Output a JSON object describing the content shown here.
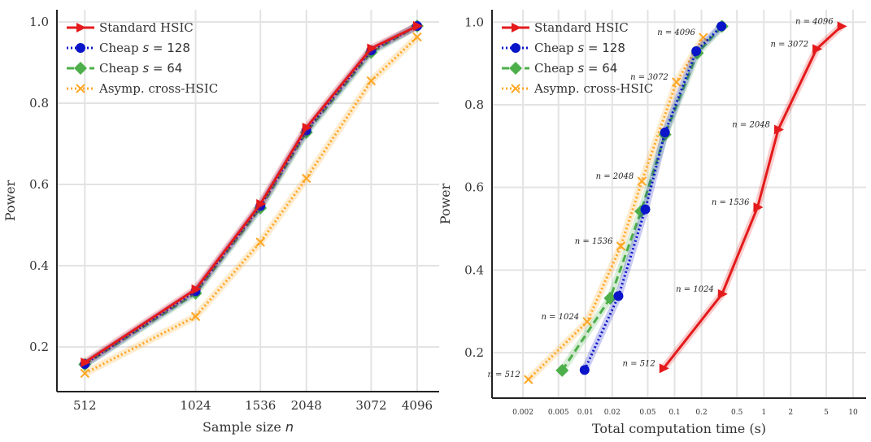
{
  "chart_data": [
    {
      "type": "line",
      "xlabel": "Sample size n",
      "ylabel": "Power",
      "x_scale": "log",
      "xlim": [
        430,
        4700
      ],
      "ylim": [
        0.09,
        1.03
      ],
      "xticks": [
        512,
        1024,
        1536,
        2048,
        3072,
        4096
      ],
      "xtick_labels": [
        "512",
        "1024",
        "1536",
        "2048",
        "3072",
        "4096"
      ],
      "yticks": [
        0.2,
        0.4,
        0.6,
        0.8,
        1.0
      ],
      "ytick_labels": [
        "0.2",
        "0.4",
        "0.6",
        "0.8",
        "1.0"
      ],
      "grid": true,
      "legend_position": "top-left",
      "series": [
        {
          "name": "Standard HSIC",
          "color": "#e41a1c",
          "marker": "triangle-right",
          "linestyle": "solid",
          "x": [
            512,
            1024,
            1536,
            2048,
            3072,
            4096
          ],
          "y": [
            0.162,
            0.342,
            0.552,
            0.74,
            0.935,
            0.99
          ]
        },
        {
          "name": "Cheap s = 128",
          "color": "#0a14c8",
          "marker": "circle",
          "linestyle": "dotted",
          "x": [
            512,
            1024,
            1536,
            2048,
            3072,
            4096
          ],
          "y": [
            0.158,
            0.337,
            0.547,
            0.733,
            0.93,
            0.99
          ]
        },
        {
          "name": "Cheap s = 64",
          "color": "#4daf4a",
          "marker": "diamond",
          "linestyle": "dashed",
          "x": [
            512,
            1024,
            1536,
            2048,
            3072,
            4096
          ],
          "y": [
            0.157,
            0.332,
            0.542,
            0.728,
            0.925,
            0.99
          ]
        },
        {
          "name": "Asymp. cross-HSIC",
          "color": "#ffa726",
          "marker": "x",
          "linestyle": "dotted",
          "x": [
            512,
            1024,
            1536,
            2048,
            3072,
            4096
          ],
          "y": [
            0.135,
            0.275,
            0.458,
            0.615,
            0.855,
            0.963
          ]
        }
      ]
    },
    {
      "type": "line",
      "xlabel": "Total computation time (s)",
      "ylabel": "Power",
      "x_scale": "log",
      "xlim": [
        0.0009,
        14
      ],
      "ylim": [
        0.09,
        1.03
      ],
      "xticks": [
        0.002,
        0.005,
        0.01,
        0.02,
        0.05,
        0.1,
        0.2,
        0.5,
        1,
        2,
        5,
        10
      ],
      "xtick_labels": [
        "0.002",
        "0.005",
        "0.01",
        "0.02",
        "0.05",
        "0.1",
        "0.2",
        "0.5",
        "1",
        "2",
        "5",
        "10"
      ],
      "yticks": [
        0.2,
        0.4,
        0.6,
        0.8,
        1.0
      ],
      "ytick_labels": [
        "0.2",
        "0.4",
        "0.6",
        "0.8",
        "1.0"
      ],
      "grid": true,
      "legend_position": "top-left",
      "series": [
        {
          "name": "Standard HSIC",
          "color": "#e41a1c",
          "marker": "triangle-right",
          "linestyle": "solid",
          "x": [
            0.075,
            0.34,
            0.85,
            1.45,
            3.9,
            7.4
          ],
          "y": [
            0.162,
            0.342,
            0.552,
            0.74,
            0.935,
            0.99
          ]
        },
        {
          "name": "Cheap s = 128",
          "color": "#0a14c8",
          "marker": "circle",
          "linestyle": "dotted",
          "x": [
            0.0098,
            0.0235,
            0.047,
            0.078,
            0.175,
            0.335
          ],
          "y": [
            0.158,
            0.337,
            0.547,
            0.733,
            0.93,
            0.99
          ]
        },
        {
          "name": "Cheap s = 64",
          "color": "#4daf4a",
          "marker": "diamond",
          "linestyle": "dashed",
          "x": [
            0.0055,
            0.019,
            0.042,
            0.078,
            0.18,
            0.34
          ],
          "y": [
            0.157,
            0.332,
            0.542,
            0.728,
            0.925,
            0.99
          ]
        },
        {
          "name": "Asymp. cross-HSIC",
          "color": "#ffa726",
          "marker": "x",
          "linestyle": "dotted",
          "x": [
            0.0023,
            0.0105,
            0.025,
            0.043,
            0.105,
            0.21
          ],
          "y": [
            0.135,
            0.275,
            0.458,
            0.615,
            0.855,
            0.963
          ]
        }
      ],
      "annotations": [
        {
          "series": "Standard HSIC",
          "texts": [
            "n = 512",
            "n = 1024",
            "n = 1536",
            "n = 2048",
            "n = 3072",
            "n = 4096"
          ]
        },
        {
          "series": "Asymp. cross-HSIC",
          "texts": [
            "n = 512",
            "n = 1024",
            "n = 1536",
            "n = 2048",
            "n = 3072",
            "n = 4096"
          ]
        }
      ]
    }
  ]
}
